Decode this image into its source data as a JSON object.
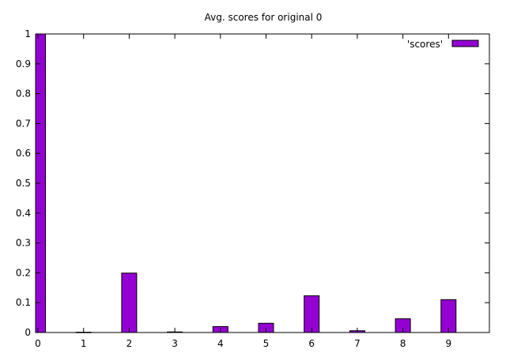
{
  "chart_data": {
    "type": "bar",
    "title": "Avg. scores for original 0",
    "xlabel": "",
    "ylabel": "",
    "categories": [
      "0",
      "1",
      "2",
      "3",
      "4",
      "5",
      "6",
      "7",
      "8",
      "9"
    ],
    "series": [
      {
        "name": "'scores'",
        "values": [
          1.0,
          0.001,
          0.199,
          0.002,
          0.02,
          0.031,
          0.123,
          0.006,
          0.046,
          0.11
        ],
        "color": "#9400d3"
      }
    ],
    "ylim": [
      0,
      1
    ],
    "yticks": [
      "0",
      "0.1",
      "0.2",
      "0.3",
      "0.4",
      "0.5",
      "0.6",
      "0.7",
      "0.8",
      "0.9",
      "1"
    ],
    "grid": false,
    "legend_position": "top-right"
  }
}
